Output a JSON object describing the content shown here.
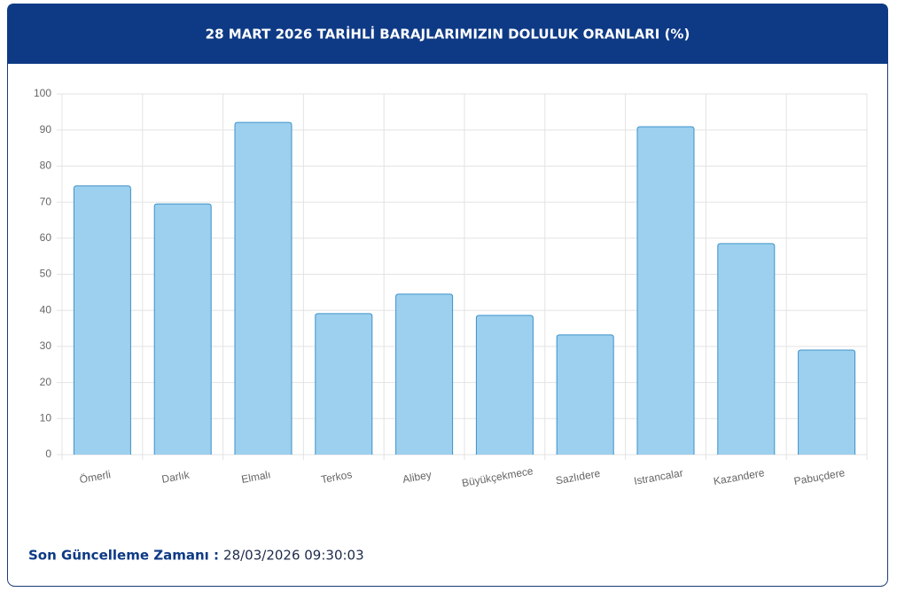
{
  "chart_data": {
    "type": "bar",
    "title": "28 MART 2026 TARİHLİ BARAJLARIMIZIN DOLULUK ORANLARI (%)",
    "categories": [
      "Ömerli",
      "Darlık",
      "Elmalı",
      "Terkos",
      "Alibey",
      "Büyükçekmece",
      "Sazlıdere",
      "Istrancalar",
      "Kazandere",
      "Pabuçdere"
    ],
    "values": [
      74.5,
      69.5,
      92.1,
      39.1,
      44.5,
      38.6,
      33.2,
      90.9,
      58.5,
      29.0
    ],
    "color": "#9dd0ee",
    "border_color": "#3d92c9",
    "ylim": [
      0,
      100
    ],
    "yticks": [
      0,
      10,
      20,
      30,
      40,
      50,
      60,
      70,
      80,
      90,
      100
    ],
    "grid": true
  },
  "footer": {
    "label": "Son Güncelleme Zamanı :",
    "value": "28/03/2026 09:30:03"
  }
}
